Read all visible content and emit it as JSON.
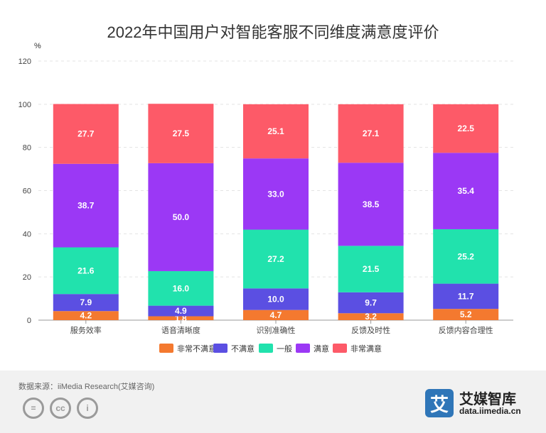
{
  "chart_data": {
    "type": "bar",
    "stacked": true,
    "title": "2022年中国用户对智能客服不同维度满意度评价",
    "ylabel": "%",
    "ylim": [
      0,
      120
    ],
    "yticks": [
      0,
      20,
      40,
      60,
      80,
      100,
      120
    ],
    "grid": true,
    "legend_position": "bottom",
    "categories": [
      "服务效率",
      "语音清晰度",
      "识别准确性",
      "反馈及时性",
      "反馈内容合理性"
    ],
    "series": [
      {
        "name": "非常不满意",
        "color": "#f4792f",
        "values": [
          4.2,
          1.8,
          4.7,
          3.2,
          5.2
        ]
      },
      {
        "name": "不满意",
        "color": "#5b4fe2",
        "values": [
          7.9,
          4.9,
          10.0,
          9.7,
          11.7
        ]
      },
      {
        "name": "一般",
        "color": "#21e2ad",
        "values": [
          21.6,
          16.0,
          27.2,
          21.5,
          25.2
        ]
      },
      {
        "name": "满意",
        "color": "#9b38f5",
        "values": [
          38.7,
          50.0,
          33.0,
          38.5,
          35.4
        ]
      },
      {
        "name": "非常满意",
        "color": "#fd5a68",
        "values": [
          27.7,
          27.5,
          25.1,
          27.1,
          22.5
        ]
      }
    ]
  },
  "footer": {
    "source": "数据来源：iiMedia Research(艾媒咨询)",
    "cc_icons": [
      "equals-icon",
      "cc-icon",
      "person-icon"
    ],
    "cc_labels": [
      "=",
      "cc",
      "i"
    ],
    "brand_logo_char": "艾",
    "brand_name": "艾媒智库",
    "brand_url": "data.iimedia.cn"
  }
}
